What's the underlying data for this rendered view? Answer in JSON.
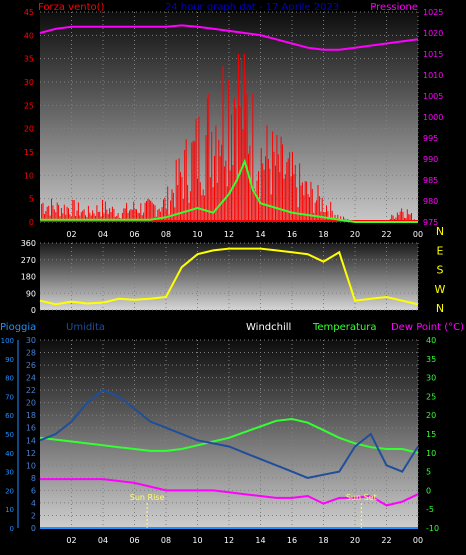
{
  "colors": {
    "wind": "#ff0000",
    "gust": "#33ff33",
    "pressure": "#ff00ff",
    "direction": "#ffff00",
    "rain": "#1e90ff",
    "humidity": "#1f4e9a",
    "windchill": "#ffffff",
    "temperature": "#33ff33",
    "dewpoint": "#ff00ff",
    "sun": "#ffff66",
    "title": "#0000cc"
  },
  "header": {
    "left": "Forza vento()",
    "title": "24 hour graph dat - 17 Aprile 2023",
    "right": "Pressione"
  },
  "chart_data": [
    {
      "type": "line",
      "name": "wind-pressure",
      "x_ticks": [
        "02",
        "04",
        "06",
        "08",
        "10",
        "12",
        "14",
        "16",
        "18",
        "20",
        "22",
        "00"
      ],
      "y_left": {
        "label": "Forza vento()",
        "ticks": [
          0,
          5,
          10,
          15,
          20,
          25,
          30,
          35,
          40,
          45
        ],
        "range": [
          0,
          45
        ]
      },
      "y_right": {
        "label": "Pressione",
        "ticks": [
          975,
          980,
          985,
          990,
          995,
          1000,
          1005,
          1010,
          1015,
          1020,
          1025
        ],
        "range": [
          975,
          1025
        ]
      },
      "series": [
        {
          "key": "wind",
          "x": [
            0,
            1,
            2,
            3,
            4,
            5,
            6,
            7,
            8,
            9,
            10,
            11,
            12,
            12.5,
            13,
            13.5,
            14,
            15,
            16,
            17,
            18,
            19,
            20,
            21,
            22,
            23,
            24
          ],
          "y": [
            4,
            3,
            3,
            2,
            3,
            2,
            3,
            3,
            4,
            10,
            15,
            20,
            26,
            28,
            25,
            18,
            14,
            12,
            9,
            6,
            4,
            1,
            0,
            0,
            0,
            3,
            0
          ]
        },
        {
          "key": "gust",
          "x": [
            0,
            1,
            2,
            3,
            4,
            5,
            6,
            7,
            8,
            9,
            10,
            11,
            12,
            12.5,
            13,
            13.5,
            14,
            15,
            16,
            17,
            18,
            19,
            20,
            21,
            22,
            23,
            24
          ],
          "y": [
            0.5,
            0.5,
            0.5,
            0.5,
            0.5,
            0.5,
            0.5,
            0.5,
            1,
            2,
            3,
            2,
            6,
            9,
            13,
            7,
            4,
            3,
            2,
            1.5,
            1,
            0.5,
            0,
            0,
            0,
            0,
            0
          ]
        },
        {
          "key": "pressure",
          "x": [
            0,
            1,
            2,
            3,
            4,
            5,
            6,
            7,
            8,
            9,
            10,
            11,
            12,
            13,
            14,
            15,
            16,
            17,
            18,
            19,
            20,
            21,
            22,
            23,
            24
          ],
          "y": [
            1020,
            1021,
            1021.5,
            1021.5,
            1021.5,
            1021.5,
            1021.5,
            1021.5,
            1021.5,
            1021.8,
            1021.5,
            1021,
            1020.5,
            1020,
            1019.5,
            1018.5,
            1017.5,
            1016.5,
            1016,
            1016,
            1016.5,
            1017,
            1017.5,
            1018,
            1018.5
          ]
        }
      ]
    },
    {
      "type": "line",
      "name": "wind-direction",
      "y_left": {
        "ticks": [
          0,
          90,
          180,
          270,
          360
        ],
        "range": [
          0,
          360
        ]
      },
      "y_right": {
        "ticks": [
          "N",
          "W",
          "S",
          "E",
          "N"
        ]
      },
      "series": [
        {
          "key": "direction",
          "x": [
            0,
            1,
            2,
            3,
            4,
            5,
            6,
            7,
            8,
            9,
            10,
            11,
            12,
            13,
            14,
            15,
            16,
            17,
            18,
            19,
            20,
            21,
            22,
            23,
            24
          ],
          "y": [
            50,
            30,
            45,
            35,
            40,
            60,
            55,
            60,
            70,
            230,
            300,
            320,
            330,
            330,
            330,
            320,
            310,
            300,
            260,
            310,
            50,
            60,
            70,
            50,
            30
          ]
        }
      ]
    },
    {
      "type": "line",
      "name": "temp-humidity",
      "x_ticks": [
        "02",
        "04",
        "06",
        "08",
        "10",
        "12",
        "14",
        "16",
        "18",
        "20",
        "22",
        "00"
      ],
      "header": {
        "rain": "Pioggia",
        "humidity": "Umidita",
        "windchill": "Windchill",
        "temperature": "Temperatura",
        "dewpoint": "Dew Point (°C)"
      },
      "y_rain": {
        "ticks": [
          0,
          10,
          20,
          30,
          40,
          50,
          60,
          70,
          80,
          90,
          100
        ],
        "range": [
          0,
          100
        ]
      },
      "y_humidity": {
        "ticks": [
          0,
          2,
          4,
          6,
          8,
          10,
          12,
          14,
          16,
          18,
          20,
          22,
          24,
          26,
          28,
          30
        ],
        "range": [
          0,
          30
        ]
      },
      "y_temp": {
        "ticks": [
          -10,
          -5,
          0,
          5,
          10,
          15,
          20,
          25,
          30,
          35,
          40
        ],
        "range": [
          -10,
          40
        ]
      },
      "annotations": [
        {
          "label": "Sun Rise",
          "x": 6.8
        },
        {
          "label": "Sun Set",
          "x": 20.4
        }
      ],
      "series": [
        {
          "key": "humidity",
          "x": [
            0,
            1,
            2,
            3,
            4,
            5,
            6,
            7,
            8,
            9,
            10,
            11,
            12,
            13,
            14,
            15,
            16,
            17,
            18,
            19,
            20,
            21,
            22,
            23,
            24
          ],
          "y": [
            14,
            15,
            17,
            20,
            22,
            21,
            19,
            17,
            16,
            15,
            14,
            13.5,
            13,
            12,
            11,
            10,
            9,
            8,
            8.5,
            9,
            13,
            15,
            10,
            9,
            13
          ]
        },
        {
          "key": "temperature",
          "x": [
            0,
            1,
            2,
            3,
            4,
            5,
            6,
            7,
            8,
            9,
            10,
            11,
            12,
            13,
            14,
            15,
            16,
            17,
            18,
            19,
            20,
            21,
            22,
            23,
            24
          ],
          "y": [
            14,
            13.5,
            13,
            12.5,
            12,
            11.5,
            11,
            10.5,
            10.5,
            11,
            12,
            13,
            14,
            15.5,
            17,
            18.5,
            19,
            18,
            16,
            14,
            12.5,
            11.5,
            11,
            11,
            10
          ]
        },
        {
          "key": "dewpoint",
          "x": [
            0,
            1,
            2,
            3,
            4,
            5,
            6,
            7,
            8,
            9,
            10,
            11,
            12,
            13,
            14,
            15,
            16,
            17,
            18,
            19,
            20,
            21,
            22,
            23,
            24
          ],
          "y": [
            3,
            3,
            3,
            3,
            3,
            2.5,
            2,
            1,
            0,
            0,
            0,
            0,
            -0.5,
            -1,
            -1.5,
            -2,
            -2,
            -1.5,
            -3.5,
            -2,
            -2,
            -1.5,
            -4,
            -3,
            -1
          ]
        },
        {
          "key": "rain",
          "x": [
            0,
            24
          ],
          "y": [
            0,
            0
          ]
        }
      ]
    }
  ]
}
